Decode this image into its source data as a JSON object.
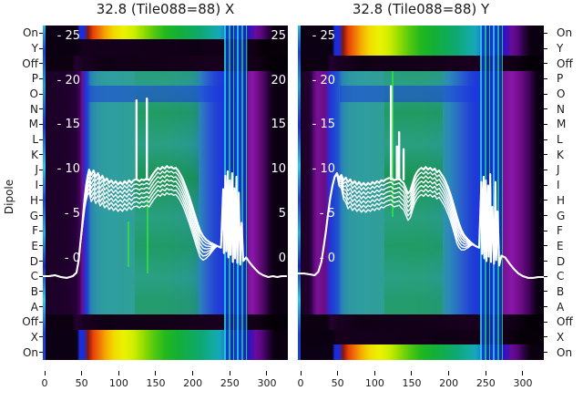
{
  "palette": {
    "figure_bg": "#ffffff",
    "plot_dark": "#0b0014",
    "teal": "#2f9f96",
    "green": "#18b42c",
    "yellow": "#eef200",
    "orange": "#f07c08",
    "red": "#e84008",
    "blue": "#1b3fd6",
    "purple": "#8a16a8",
    "rfi_cyan": "#22c8dc",
    "curve_color": "#ffffff",
    "text_color": "#1a1a1a"
  },
  "figure": {
    "ylabel": "Dipole",
    "dipole_rows": [
      "On",
      "Y",
      "Off",
      "P",
      "O",
      "N",
      "M",
      "L",
      "K",
      "J",
      "I",
      "H",
      "G",
      "F",
      "E",
      "D",
      "C",
      "B",
      "A",
      "Off",
      "X",
      "On"
    ],
    "subplots": [
      {
        "title": "32.8 (Tile088=88) X",
        "x_tick_labels": [
          "0",
          "50",
          "100",
          "150",
          "200",
          "250",
          "300"
        ],
        "scale_labels_left": [
          "- 25",
          "- 20",
          "- 15",
          "- 10",
          "- 5",
          "- 0"
        ],
        "scale_labels_right": [
          "25",
          "20",
          "15",
          "10",
          "5",
          "0"
        ]
      },
      {
        "title": "32.8 (Tile088=88) Y",
        "x_tick_labels": [
          "0",
          "50",
          "100",
          "150",
          "200",
          "250",
          "300"
        ],
        "scale_labels_left": [
          "- 25",
          "- 20",
          "- 15",
          "- 10",
          "- 5",
          "- 0"
        ],
        "scale_labels_right": []
      }
    ]
  },
  "chart_data": {
    "type": "heatmap",
    "colormap_hint": "dark purple -> blue -> teal -> green -> yellow -> orange-red (spectral-like), white bandpass curves overlaid",
    "subplots": [
      {
        "title": "32.8 (Tile088=88) X",
        "x_ticks": [
          0,
          50,
          100,
          150,
          200,
          250,
          300
        ],
        "rows": [
          "On",
          "Y",
          "Off",
          "P",
          "O",
          "N",
          "M",
          "L",
          "K",
          "J",
          "I",
          "H",
          "G",
          "F",
          "E",
          "D",
          "C",
          "B",
          "A",
          "Off",
          "X",
          "On"
        ],
        "power_ticks": [
          25,
          20,
          15,
          10,
          5,
          0
        ],
        "bright_bands": {
          "top": [
            "On"
          ],
          "bottom": [
            "X",
            "On"
          ]
        },
        "rfi_stripe_x_range": [
          241,
          272
        ],
        "bandpass_overlay": {
          "spike_base_v": 8.9,
          "spikes": [
            [
              124,
              17.8
            ],
            [
              138,
              18.0
            ]
          ],
          "points": [
            [
              -2,
              -2.0
            ],
            [
              6,
              -2.0
            ],
            [
              14,
              -1.9
            ],
            [
              22,
              -2.1
            ],
            [
              30,
              -2.2
            ],
            [
              38,
              -2.0
            ],
            [
              43,
              -1.6
            ],
            [
              46,
              -0.2
            ],
            [
              48,
              1.5
            ],
            [
              50,
              3.2
            ],
            [
              52,
              5.0
            ],
            [
              54,
              6.8
            ],
            [
              56,
              8.2
            ],
            [
              58,
              9.3
            ],
            [
              60,
              10.0
            ],
            [
              63,
              9.4
            ],
            [
              66,
              9.9
            ],
            [
              69,
              9.2
            ],
            [
              72,
              9.6
            ],
            [
              75,
              8.9
            ],
            [
              78,
              9.3
            ],
            [
              81,
              8.7
            ],
            [
              84,
              9.0
            ],
            [
              87,
              8.5
            ],
            [
              90,
              8.8
            ],
            [
              93,
              8.4
            ],
            [
              96,
              8.7
            ],
            [
              99,
              8.3
            ],
            [
              102,
              8.6
            ],
            [
              105,
              8.3
            ],
            [
              108,
              8.7
            ],
            [
              111,
              8.4
            ],
            [
              114,
              8.8
            ],
            [
              117,
              8.5
            ],
            [
              120,
              8.8
            ],
            [
              124,
              8.9
            ],
            [
              128,
              8.7
            ],
            [
              131,
              8.9
            ],
            [
              134,
              8.8
            ],
            [
              138,
              9.0
            ],
            [
              141,
              8.8
            ],
            [
              144,
              9.2
            ],
            [
              147,
              9.6
            ],
            [
              150,
              9.9
            ],
            [
              153,
              10.2
            ],
            [
              156,
              10.0
            ],
            [
              159,
              10.3
            ],
            [
              162,
              10.1
            ],
            [
              165,
              10.4
            ],
            [
              168,
              10.2
            ],
            [
              171,
              10.3
            ],
            [
              174,
              10.1
            ],
            [
              177,
              10.2
            ],
            [
              180,
              9.9
            ],
            [
              183,
              9.5
            ],
            [
              186,
              9.0
            ],
            [
              189,
              8.4
            ],
            [
              192,
              7.7
            ],
            [
              195,
              7.0
            ],
            [
              198,
              6.2
            ],
            [
              201,
              5.4
            ],
            [
              204,
              4.6
            ],
            [
              207,
              3.8
            ],
            [
              210,
              3.1
            ],
            [
              214,
              2.5
            ],
            [
              218,
              2.1
            ],
            [
              223,
              1.8
            ],
            [
              228,
              1.6
            ],
            [
              233,
              1.4
            ],
            [
              238,
              1.2
            ],
            [
              241,
              7.8
            ],
            [
              242,
              0.6
            ],
            [
              244,
              9.3
            ],
            [
              245,
              0.8
            ],
            [
              247,
              9.8
            ],
            [
              248,
              0.1
            ],
            [
              250,
              8.8
            ],
            [
              251,
              0.4
            ],
            [
              253,
              9.6
            ],
            [
              254,
              -0.4
            ],
            [
              256,
              7.9
            ],
            [
              257,
              0.0
            ],
            [
              259,
              9.2
            ],
            [
              260,
              -0.5
            ],
            [
              262,
              7.4
            ],
            [
              264,
              -0.7
            ],
            [
              266,
              4.0
            ],
            [
              268,
              -0.3
            ],
            [
              272,
              0.1
            ],
            [
              277,
              -0.5
            ],
            [
              283,
              -1.1
            ],
            [
              289,
              -1.6
            ],
            [
              295,
              -1.9
            ],
            [
              302,
              -2.1
            ],
            [
              308,
              -2.0
            ],
            [
              314,
              -2.1
            ],
            [
              320,
              -2.0
            ],
            [
              326,
              -2.0
            ]
          ]
        }
      },
      {
        "title": "32.8 (Tile088=88) Y",
        "x_ticks": [
          0,
          50,
          100,
          150,
          200,
          250,
          300
        ],
        "rows": [
          "On",
          "Y",
          "Off",
          "P",
          "O",
          "N",
          "M",
          "L",
          "K",
          "J",
          "I",
          "H",
          "G",
          "F",
          "E",
          "D",
          "C",
          "B",
          "A",
          "Off",
          "X",
          "On"
        ],
        "power_ticks": [
          25,
          20,
          15,
          10,
          5,
          0
        ],
        "bright_bands": {
          "top": [
            "On",
            "Y"
          ],
          "bottom": [
            "On"
          ]
        },
        "rfi_stripe_x_range": [
          244,
          278
        ],
        "bandpass_overlay": {
          "spike_base_v": 8.9,
          "spikes": [
            [
              122,
              19.4
            ],
            [
              130,
              12.6
            ],
            [
              133,
              14.2
            ],
            [
              139,
              12.3
            ]
          ],
          "points": [
            [
              -3,
              -1.7
            ],
            [
              5,
              -1.7
            ],
            [
              12,
              -1.8
            ],
            [
              19,
              -1.9
            ],
            [
              24,
              -1.5
            ],
            [
              28,
              -0.4
            ],
            [
              31,
              1.2
            ],
            [
              34,
              3.0
            ],
            [
              37,
              5.0
            ],
            [
              40,
              6.8
            ],
            [
              43,
              8.2
            ],
            [
              46,
              9.2
            ],
            [
              49,
              9.6
            ],
            [
              52,
              9.0
            ],
            [
              55,
              9.4
            ],
            [
              58,
              8.8
            ],
            [
              61,
              9.1
            ],
            [
              64,
              8.6
            ],
            [
              67,
              8.9
            ],
            [
              70,
              8.4
            ],
            [
              73,
              8.7
            ],
            [
              76,
              8.3
            ],
            [
              79,
              8.6
            ],
            [
              82,
              8.2
            ],
            [
              85,
              8.5
            ],
            [
              88,
              8.2
            ],
            [
              91,
              8.5
            ],
            [
              94,
              8.3
            ],
            [
              97,
              8.6
            ],
            [
              100,
              8.4
            ],
            [
              103,
              8.7
            ],
            [
              106,
              8.5
            ],
            [
              109,
              8.8
            ],
            [
              112,
              8.7
            ],
            [
              115,
              8.9
            ],
            [
              118,
              9.0
            ],
            [
              122,
              9.1
            ],
            [
              126,
              8.8
            ],
            [
              130,
              8.9
            ],
            [
              133,
              9.0
            ],
            [
              136,
              8.7
            ],
            [
              139,
              8.5
            ],
            [
              142,
              7.9
            ],
            [
              145,
              7.3
            ],
            [
              148,
              7.6
            ],
            [
              151,
              8.4
            ],
            [
              154,
              9.2
            ],
            [
              157,
              9.7
            ],
            [
              160,
              10.0
            ],
            [
              163,
              10.2
            ],
            [
              166,
              10.0
            ],
            [
              169,
              10.3
            ],
            [
              172,
              10.0
            ],
            [
              175,
              10.2
            ],
            [
              178,
              9.9
            ],
            [
              181,
              10.1
            ],
            [
              184,
              9.7
            ],
            [
              187,
              9.9
            ],
            [
              190,
              9.5
            ],
            [
              193,
              9.1
            ],
            [
              196,
              8.6
            ],
            [
              199,
              8.0
            ],
            [
              202,
              7.3
            ],
            [
              205,
              6.5
            ],
            [
              208,
              5.6
            ],
            [
              211,
              4.7
            ],
            [
              214,
              3.9
            ],
            [
              217,
              3.2
            ],
            [
              221,
              2.6
            ],
            [
              226,
              2.1
            ],
            [
              231,
              1.7
            ],
            [
              236,
              1.4
            ],
            [
              241,
              1.2
            ],
            [
              244,
              8.6
            ],
            [
              245,
              0.5
            ],
            [
              247,
              9.2
            ],
            [
              248,
              0.0
            ],
            [
              250,
              8.8
            ],
            [
              251,
              -0.3
            ],
            [
              253,
              8.2
            ],
            [
              254,
              0.2
            ],
            [
              256,
              9.5
            ],
            [
              257,
              -0.4
            ],
            [
              259,
              5.8
            ],
            [
              261,
              -0.6
            ],
            [
              263,
              8.6
            ],
            [
              264,
              -0.2
            ],
            [
              266,
              5.3
            ],
            [
              268,
              -0.8
            ],
            [
              271,
              0.3
            ],
            [
              276,
              0.1
            ],
            [
              282,
              -0.6
            ],
            [
              288,
              -1.2
            ],
            [
              294,
              -1.7
            ],
            [
              300,
              -2.0
            ],
            [
              307,
              -2.2
            ],
            [
              314,
              -2.2
            ],
            [
              321,
              -2.1
            ],
            [
              328,
              -2.1
            ]
          ]
        }
      }
    ]
  }
}
